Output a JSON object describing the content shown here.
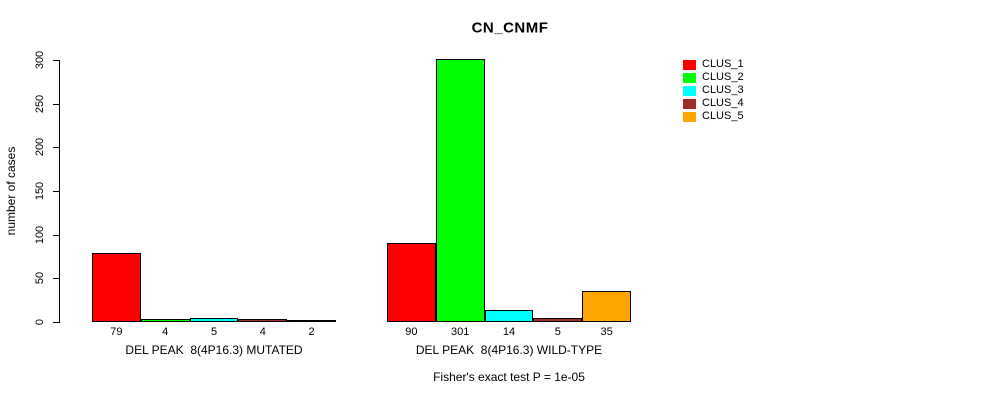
{
  "figure": {
    "background": "#ffffff"
  },
  "chart_data": {
    "type": "bar",
    "title": "CN_CNMF",
    "xlabel": "",
    "ylabel": "number of cases",
    "ylim": [
      0,
      300
    ],
    "yticks": [
      0,
      50,
      100,
      150,
      200,
      250,
      300
    ],
    "grid": false,
    "legend_position": "right",
    "categories": [
      "DEL PEAK  8(4P16.3) MUTATED",
      "DEL PEAK  8(4P16.3) WILD-TYPE"
    ],
    "series": [
      {
        "name": "CLUS_1",
        "color": "#FF0000",
        "values": [
          79,
          90
        ]
      },
      {
        "name": "CLUS_2",
        "color": "#00FF00",
        "values": [
          4,
          301
        ]
      },
      {
        "name": "CLUS_3",
        "color": "#00FFFF",
        "values": [
          5,
          14
        ]
      },
      {
        "name": "CLUS_4",
        "color": "#A52A2A",
        "values": [
          4,
          5
        ]
      },
      {
        "name": "CLUS_5",
        "color": "#FFA500",
        "values": [
          2,
          35
        ]
      }
    ],
    "bar_value_labels": [
      [
        "79",
        "4",
        "5",
        "4",
        "2"
      ],
      [
        "90",
        "301",
        "14",
        "5",
        "35"
      ]
    ],
    "footnote": "Fisher's exact test P = 1e-05",
    "axis_color": "#000000"
  }
}
